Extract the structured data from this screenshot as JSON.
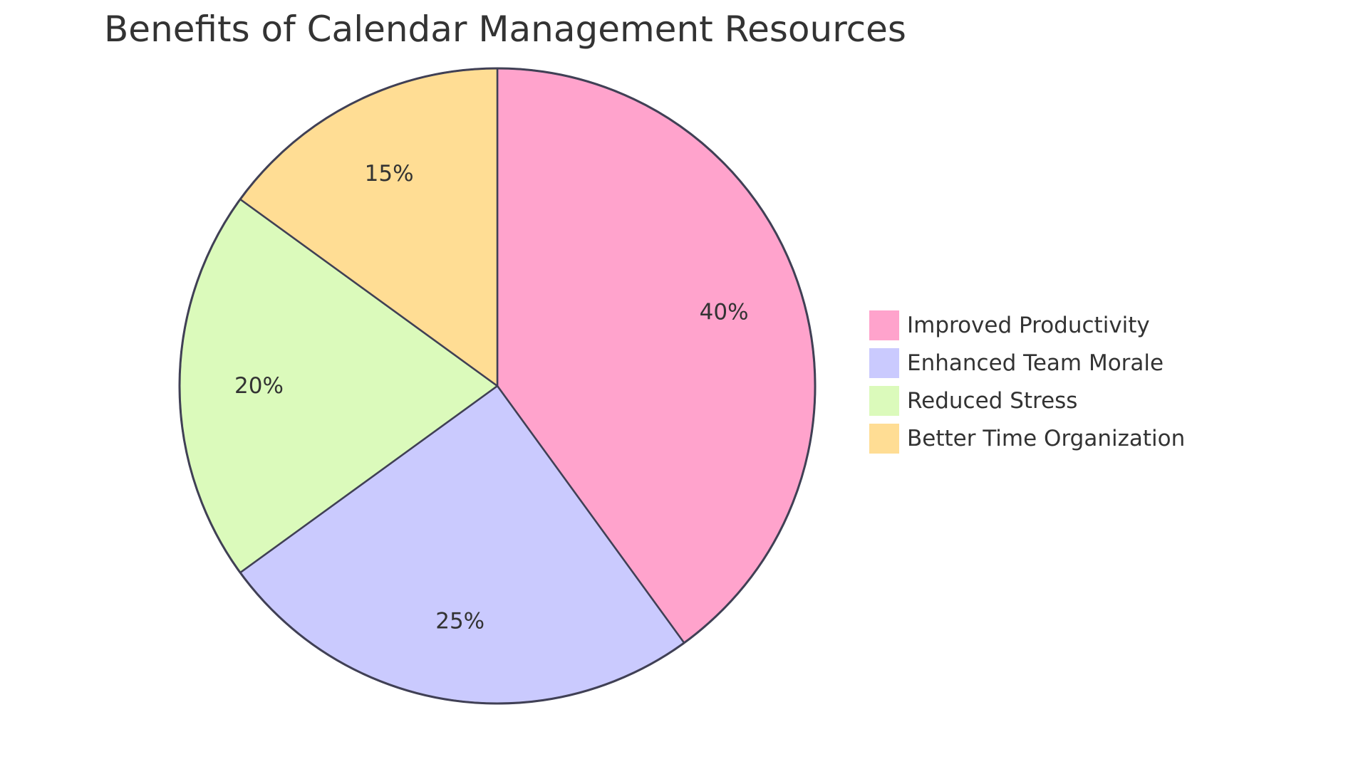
{
  "chart_data": {
    "type": "pie",
    "title": "Benefits of Calendar Management Resources",
    "categories": [
      "Improved Productivity",
      "Enhanced Team Morale",
      "Reduced Stress",
      "Better Time Organization"
    ],
    "values": [
      40,
      25,
      20,
      15
    ],
    "value_labels": [
      "40%",
      "25%",
      "20%",
      "15%"
    ],
    "colors": [
      "#ffa3cc",
      "#cacafe",
      "#dbfabb",
      "#ffdd94"
    ],
    "stroke_color": "#404055",
    "legend_position": "right"
  }
}
